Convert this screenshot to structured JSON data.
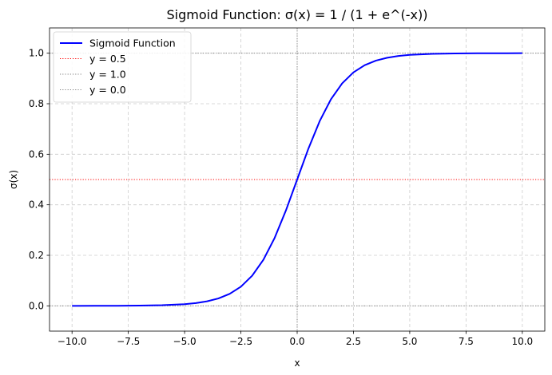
{
  "chart_data": {
    "type": "line",
    "title": "Sigmoid Function: σ(x) = 1 / (1 + e^(-x))",
    "xlabel": "x",
    "ylabel": "σ(x)",
    "xlim": [
      -11.0,
      11.0
    ],
    "ylim": [
      -0.1,
      1.1
    ],
    "xticks": [
      -10.0,
      -7.5,
      -5.0,
      -2.5,
      0.0,
      2.5,
      5.0,
      7.5,
      10.0
    ],
    "xtick_labels": [
      "−10.0",
      "−7.5",
      "−5.0",
      "−2.5",
      "0.0",
      "2.5",
      "5.0",
      "7.5",
      "10.0"
    ],
    "yticks": [
      0.0,
      0.2,
      0.4,
      0.6,
      0.8,
      1.0
    ],
    "ytick_labels": [
      "0.0",
      "0.2",
      "0.4",
      "0.6",
      "0.8",
      "1.0"
    ],
    "grid": true,
    "legend_placement": "top-left",
    "series": [
      {
        "name": "Sigmoid Function",
        "color": "#0000ff",
        "style": "solid",
        "x": [
          -10,
          -9,
          -8,
          -7,
          -6,
          -5,
          -4.5,
          -4,
          -3.5,
          -3,
          -2.5,
          -2,
          -1.5,
          -1,
          -0.5,
          0,
          0.5,
          1,
          1.5,
          2,
          2.5,
          3,
          3.5,
          4,
          4.5,
          5,
          6,
          7,
          8,
          9,
          10
        ],
        "y": [
          4.54e-05,
          0.000123,
          0.000335,
          0.000911,
          0.00247,
          0.00669,
          0.011,
          0.018,
          0.0293,
          0.0474,
          0.0759,
          0.1192,
          0.1824,
          0.2689,
          0.3775,
          0.5,
          0.6225,
          0.7311,
          0.8176,
          0.8808,
          0.9241,
          0.9526,
          0.9707,
          0.982,
          0.989,
          0.9933,
          0.9975,
          0.9991,
          0.99966,
          0.99988,
          0.99995
        ]
      }
    ],
    "reference_lines": [
      {
        "name": "y = 0.5",
        "orientation": "horizontal",
        "value": 0.5,
        "color": "#ff0000",
        "style": "dotted",
        "in_legend": true
      },
      {
        "name": "y = 1.0",
        "orientation": "horizontal",
        "value": 1.0,
        "color": "#808080",
        "style": "dotted",
        "in_legend": true
      },
      {
        "name": "y = 0.0",
        "orientation": "horizontal",
        "value": 0.0,
        "color": "#808080",
        "style": "dotted",
        "in_legend": true
      },
      {
        "name": "",
        "orientation": "vertical",
        "value": 0.0,
        "color": "#808080",
        "style": "dotted",
        "in_legend": false
      }
    ]
  }
}
